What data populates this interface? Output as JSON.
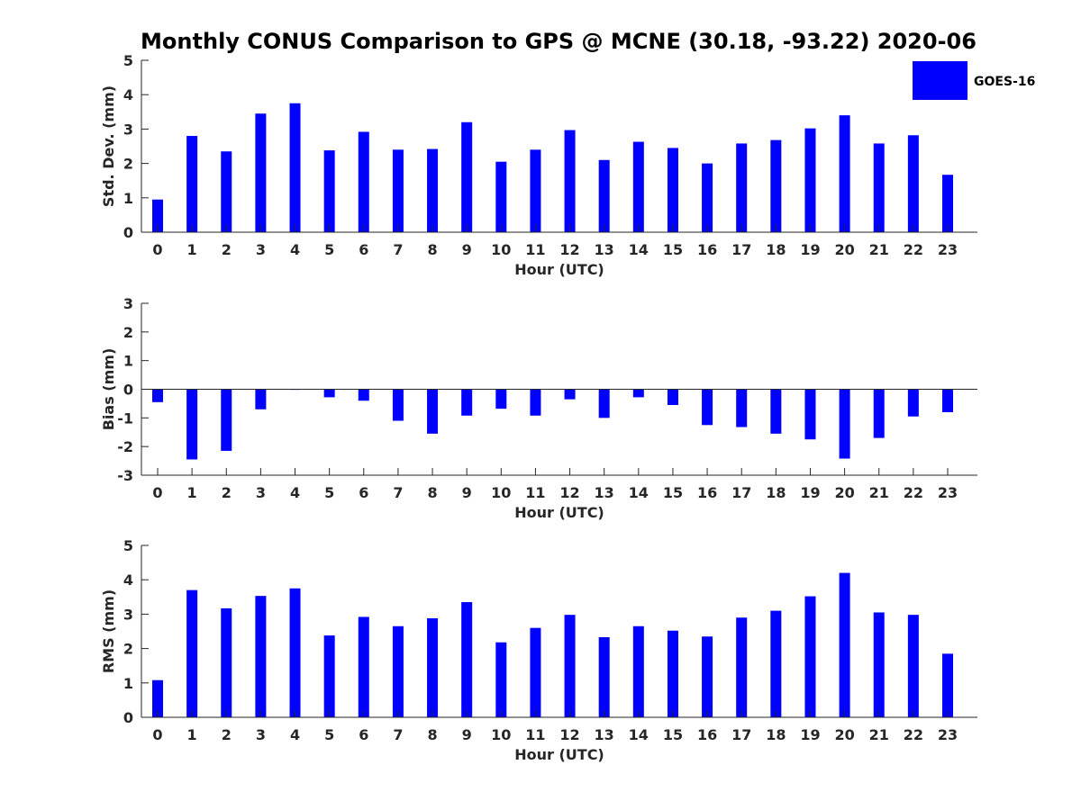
{
  "colors": {
    "bar": "#0000FF",
    "axis": "#262626"
  },
  "chart_data": {
    "title": "Monthly CONUS Comparison to GPS @ MCNE (30.18, -93.22) 2020-06",
    "legend": {
      "entries": [
        "GOES-16"
      ],
      "placement": "top-right"
    },
    "panels": [
      {
        "type": "bar",
        "ylabel": "Std. Dev. (mm)",
        "xlabel": "Hour (UTC)",
        "ylim": [
          0,
          5
        ],
        "yticks": [
          0,
          1,
          2,
          3,
          4,
          5
        ],
        "categories": [
          "0",
          "1",
          "2",
          "3",
          "4",
          "5",
          "6",
          "7",
          "8",
          "9",
          "10",
          "11",
          "12",
          "13",
          "14",
          "15",
          "16",
          "17",
          "18",
          "19",
          "20",
          "21",
          "22",
          "23"
        ],
        "series": [
          {
            "name": "GOES-16",
            "values": [
              0.95,
              2.8,
              2.35,
              3.45,
              3.75,
              2.38,
              2.92,
              2.4,
              2.42,
              3.2,
              2.05,
              2.4,
              2.97,
              2.1,
              2.63,
              2.45,
              2.0,
              2.58,
              2.68,
              3.02,
              3.4,
              2.58,
              2.82,
              1.67
            ]
          }
        ]
      },
      {
        "type": "bar",
        "ylabel": "Bias (mm)",
        "xlabel": "Hour (UTC)",
        "ylim": [
          -3,
          3
        ],
        "yticks": [
          -3,
          -2,
          -1,
          0,
          1,
          2,
          3
        ],
        "categories": [
          "0",
          "1",
          "2",
          "3",
          "4",
          "5",
          "6",
          "7",
          "8",
          "9",
          "10",
          "11",
          "12",
          "13",
          "14",
          "15",
          "16",
          "17",
          "18",
          "19",
          "20",
          "21",
          "22",
          "23"
        ],
        "series": [
          {
            "name": "GOES-16",
            "values": [
              -0.45,
              -2.45,
              -2.15,
              -0.7,
              -0.02,
              -0.28,
              -0.4,
              -1.1,
              -1.55,
              -0.92,
              -0.68,
              -0.92,
              -0.35,
              -1.0,
              -0.28,
              -0.55,
              -1.25,
              -1.32,
              -1.55,
              -1.75,
              -2.42,
              -1.7,
              -0.95,
              -0.8
            ]
          }
        ]
      },
      {
        "type": "bar",
        "ylabel": "RMS (mm)",
        "xlabel": "Hour (UTC)",
        "ylim": [
          0,
          5
        ],
        "yticks": [
          0,
          1,
          2,
          3,
          4,
          5
        ],
        "categories": [
          "0",
          "1",
          "2",
          "3",
          "4",
          "5",
          "6",
          "7",
          "8",
          "9",
          "10",
          "11",
          "12",
          "13",
          "14",
          "15",
          "16",
          "17",
          "18",
          "19",
          "20",
          "21",
          "22",
          "23"
        ],
        "series": [
          {
            "name": "GOES-16",
            "values": [
              1.08,
              3.7,
              3.17,
              3.53,
              3.75,
              2.38,
              2.92,
              2.65,
              2.88,
              3.35,
              2.18,
              2.6,
              2.98,
              2.33,
              2.65,
              2.52,
              2.35,
              2.9,
              3.1,
              3.52,
              4.2,
              3.05,
              2.98,
              1.85
            ]
          }
        ]
      }
    ]
  }
}
